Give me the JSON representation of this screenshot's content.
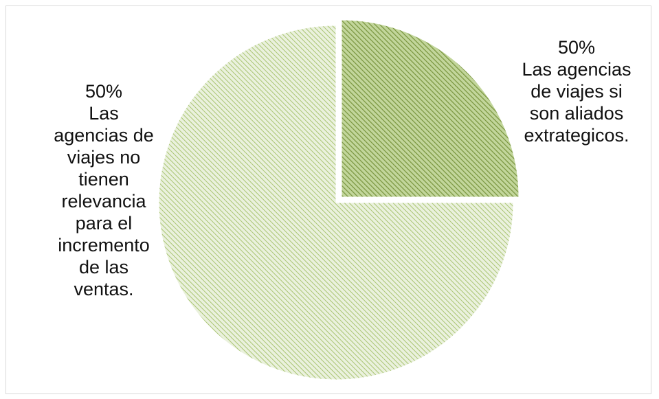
{
  "chart_data": {
    "type": "pie",
    "slices": [
      {
        "label": "Las agencias de viajes si son aliados extrategicos.",
        "value": 50,
        "value_label": "50%",
        "label_lines": [
          "Las agencias",
          "de viajes si",
          "son aliados",
          "extrategicos."
        ]
      },
      {
        "label": "Las agencias de viajes no tienen relevancia para el incremento de las ventas.",
        "value": 50,
        "value_label": "50%",
        "label_lines": [
          "Las",
          "agencias de",
          "viajes no",
          "tienen",
          "relevancia",
          "para el",
          "incremento",
          "de las",
          "ventas."
        ]
      }
    ],
    "legend": "none",
    "colors": {
      "slice_1_fill": "#c2d69b",
      "slice_1_hatch": "#77933c",
      "slice_2_fill": "#eaf1dd",
      "slice_2_hatch": "#a9c472"
    }
  }
}
